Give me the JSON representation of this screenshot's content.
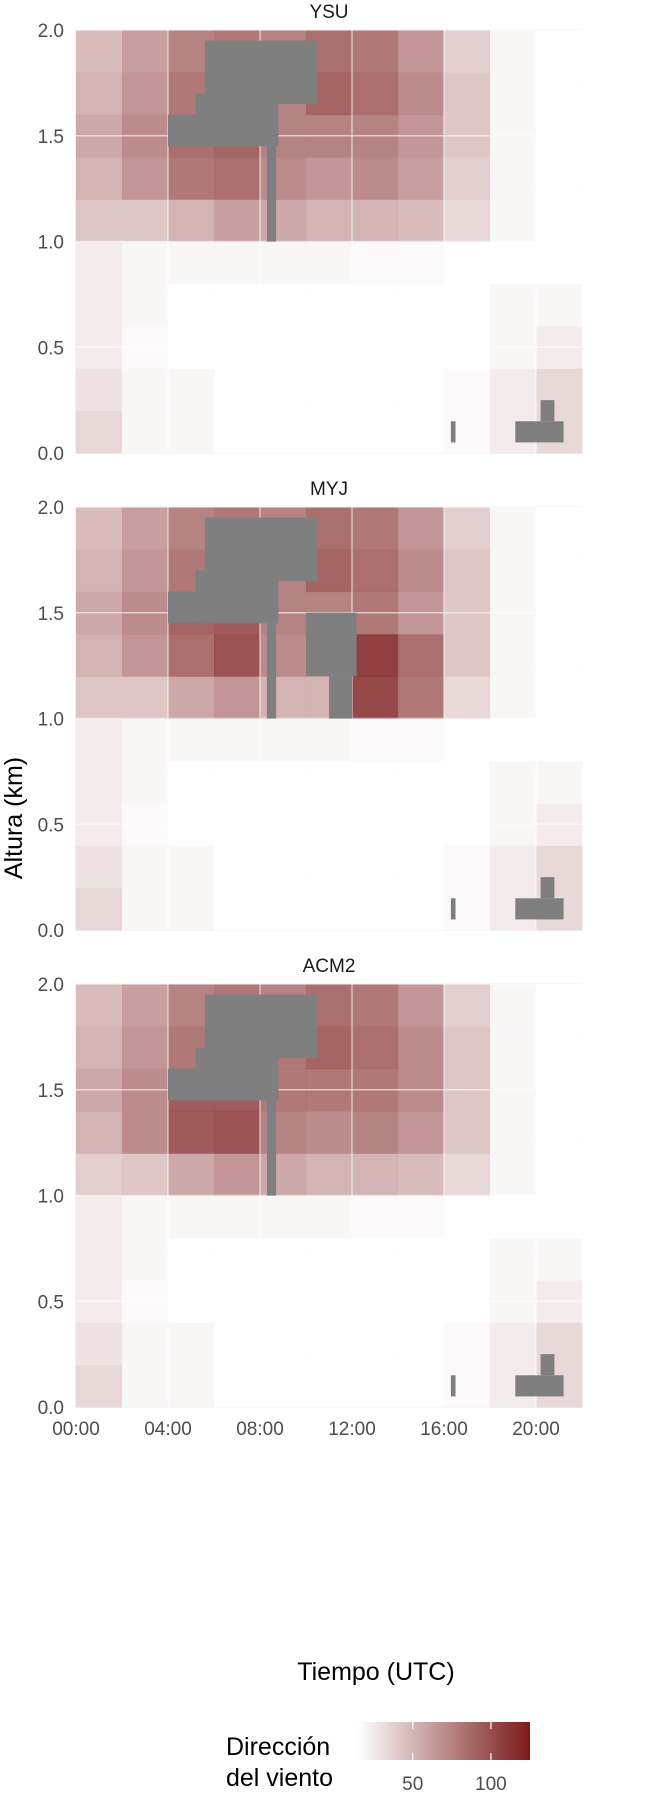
{
  "chart_data": {
    "type": "heatmap",
    "figure": {
      "xlabel": "Tiempo (UTC)",
      "ylabel": "Altura (km)",
      "x_range_hours": [
        0,
        22
      ],
      "y_range_km": [
        0,
        2
      ],
      "x_ticks": [
        "00:00",
        "04:00",
        "08:00",
        "12:00",
        "16:00",
        "20:00"
      ],
      "y_ticks": [
        "0.0",
        "0.5",
        "1.0",
        "1.5",
        "2.0"
      ],
      "legend": {
        "title_line1": "Dirección",
        "title_line2": "del viento",
        "ticks": [
          "50",
          "100"
        ],
        "tick_values": [
          50,
          100
        ],
        "range": [
          15,
          125
        ],
        "color_low": "#ffffff",
        "color_high": "#7a1a1a",
        "na_color": "#7f7f7f",
        "placement": "bottom"
      },
      "grid": true
    },
    "panels": [
      {
        "name": "YSU",
        "time_hours": [
          0,
          2,
          4,
          6,
          8,
          10,
          12,
          14,
          16,
          18,
          20,
          22
        ],
        "height_km": [
          0.1,
          0.3,
          0.5,
          0.7,
          0.9,
          1.1,
          1.3,
          1.5,
          1.7,
          1.9
        ],
        "values": [
          [
            35,
            20,
            20,
            15,
            15,
            15,
            15,
            15,
            18,
            25,
            35,
            30
          ],
          [
            30,
            20,
            20,
            15,
            15,
            15,
            15,
            15,
            18,
            25,
            35,
            30
          ],
          [
            25,
            18,
            15,
            15,
            15,
            15,
            15,
            15,
            15,
            20,
            25,
            20
          ],
          [
            25,
            20,
            15,
            15,
            15,
            15,
            15,
            15,
            15,
            20,
            20,
            15
          ],
          [
            25,
            20,
            20,
            20,
            20,
            20,
            18,
            18,
            15,
            15,
            15,
            15
          ],
          [
            45,
            45,
            55,
            65,
            60,
            55,
            55,
            50,
            35,
            20,
            15,
            15
          ],
          [
            55,
            70,
            85,
            90,
            75,
            70,
            75,
            65,
            40,
            20,
            15,
            15
          ],
          [
            60,
            75,
            90,
            95,
            80,
            80,
            80,
            70,
            45,
            20,
            15,
            15
          ],
          [
            55,
            70,
            85,
            90,
            80,
            95,
            90,
            75,
            45,
            20,
            15,
            15
          ],
          [
            50,
            65,
            80,
            85,
            80,
            90,
            85,
            70,
            40,
            20,
            15,
            15
          ]
        ],
        "missing_regions": [
          {
            "t": [
              5.6,
              10.5
            ],
            "h": [
              1.65,
              1.95
            ]
          },
          {
            "t": [
              5.2,
              8.8
            ],
            "h": [
              1.45,
              1.7
            ]
          },
          {
            "t": [
              4.0,
              5.8
            ],
            "h": [
              1.45,
              1.6
            ]
          },
          {
            "t": [
              8.3,
              8.7
            ],
            "h": [
              1.0,
              1.5
            ]
          },
          {
            "t": [
              16.3,
              16.5
            ],
            "h": [
              0.05,
              0.15
            ]
          },
          {
            "t": [
              19.1,
              21.2
            ],
            "h": [
              0.05,
              0.15
            ]
          },
          {
            "t": [
              20.2,
              20.8
            ],
            "h": [
              0.15,
              0.25
            ]
          }
        ]
      },
      {
        "name": "MYJ",
        "time_hours": [
          0,
          2,
          4,
          6,
          8,
          10,
          12,
          14,
          16,
          18,
          20,
          22
        ],
        "height_km": [
          0.1,
          0.3,
          0.5,
          0.7,
          0.9,
          1.1,
          1.3,
          1.5,
          1.7,
          1.9
        ],
        "values": [
          [
            35,
            20,
            20,
            15,
            15,
            15,
            15,
            15,
            18,
            25,
            35,
            30
          ],
          [
            30,
            20,
            20,
            15,
            15,
            15,
            15,
            15,
            18,
            25,
            35,
            30
          ],
          [
            25,
            18,
            15,
            15,
            15,
            15,
            15,
            15,
            15,
            20,
            25,
            20
          ],
          [
            25,
            20,
            15,
            15,
            15,
            15,
            15,
            15,
            15,
            20,
            20,
            15
          ],
          [
            25,
            20,
            20,
            20,
            20,
            20,
            18,
            18,
            15,
            15,
            15,
            15
          ],
          [
            45,
            45,
            60,
            70,
            55,
            55,
            110,
            85,
            35,
            20,
            15,
            15
          ],
          [
            55,
            70,
            90,
            105,
            75,
            70,
            115,
            90,
            45,
            20,
            15,
            15
          ],
          [
            60,
            75,
            95,
            100,
            80,
            80,
            85,
            70,
            45,
            20,
            15,
            15
          ],
          [
            55,
            70,
            85,
            90,
            80,
            95,
            90,
            75,
            45,
            20,
            15,
            15
          ],
          [
            50,
            65,
            80,
            85,
            80,
            90,
            85,
            70,
            40,
            20,
            15,
            15
          ]
        ],
        "missing_regions": [
          {
            "t": [
              5.6,
              10.5
            ],
            "h": [
              1.65,
              1.95
            ]
          },
          {
            "t": [
              5.2,
              8.8
            ],
            "h": [
              1.45,
              1.7
            ]
          },
          {
            "t": [
              4.0,
              5.8
            ],
            "h": [
              1.45,
              1.6
            ]
          },
          {
            "t": [
              8.3,
              8.7
            ],
            "h": [
              1.0,
              1.5
            ]
          },
          {
            "t": [
              10.0,
              12.2
            ],
            "h": [
              1.2,
              1.5
            ]
          },
          {
            "t": [
              11.0,
              12.0
            ],
            "h": [
              1.0,
              1.2
            ]
          },
          {
            "t": [
              16.3,
              16.5
            ],
            "h": [
              0.05,
              0.15
            ]
          },
          {
            "t": [
              19.1,
              21.2
            ],
            "h": [
              0.05,
              0.15
            ]
          },
          {
            "t": [
              20.2,
              20.8
            ],
            "h": [
              0.15,
              0.25
            ]
          }
        ]
      },
      {
        "name": "ACM2",
        "time_hours": [
          0,
          2,
          4,
          6,
          8,
          10,
          12,
          14,
          16,
          18,
          20,
          22
        ],
        "height_km": [
          0.1,
          0.3,
          0.5,
          0.7,
          0.9,
          1.1,
          1.3,
          1.5,
          1.7,
          1.9
        ],
        "values": [
          [
            35,
            20,
            20,
            15,
            15,
            15,
            15,
            15,
            18,
            25,
            35,
            30
          ],
          [
            30,
            20,
            20,
            15,
            15,
            15,
            15,
            15,
            18,
            25,
            35,
            30
          ],
          [
            25,
            18,
            15,
            15,
            15,
            15,
            15,
            15,
            15,
            20,
            25,
            20
          ],
          [
            25,
            20,
            15,
            15,
            15,
            15,
            15,
            15,
            15,
            20,
            20,
            15
          ],
          [
            25,
            20,
            20,
            20,
            20,
            20,
            18,
            18,
            15,
            15,
            15,
            15
          ],
          [
            40,
            45,
            60,
            70,
            60,
            55,
            55,
            50,
            35,
            20,
            15,
            15
          ],
          [
            55,
            75,
            100,
            105,
            80,
            75,
            80,
            70,
            45,
            20,
            15,
            15
          ],
          [
            60,
            75,
            100,
            100,
            85,
            85,
            85,
            75,
            45,
            20,
            15,
            15
          ],
          [
            55,
            70,
            85,
            90,
            85,
            95,
            90,
            75,
            45,
            20,
            15,
            15
          ],
          [
            50,
            65,
            80,
            85,
            80,
            90,
            85,
            70,
            40,
            20,
            15,
            15
          ]
        ],
        "missing_regions": [
          {
            "t": [
              5.6,
              10.5
            ],
            "h": [
              1.65,
              1.95
            ]
          },
          {
            "t": [
              5.2,
              8.8
            ],
            "h": [
              1.45,
              1.7
            ]
          },
          {
            "t": [
              4.0,
              5.8
            ],
            "h": [
              1.45,
              1.6
            ]
          },
          {
            "t": [
              8.3,
              8.7
            ],
            "h": [
              1.0,
              1.5
            ]
          },
          {
            "t": [
              16.3,
              16.5
            ],
            "h": [
              0.05,
              0.15
            ]
          },
          {
            "t": [
              19.1,
              21.2
            ],
            "h": [
              0.05,
              0.15
            ]
          },
          {
            "t": [
              20.2,
              20.8
            ],
            "h": [
              0.15,
              0.25
            ]
          }
        ]
      }
    ]
  }
}
